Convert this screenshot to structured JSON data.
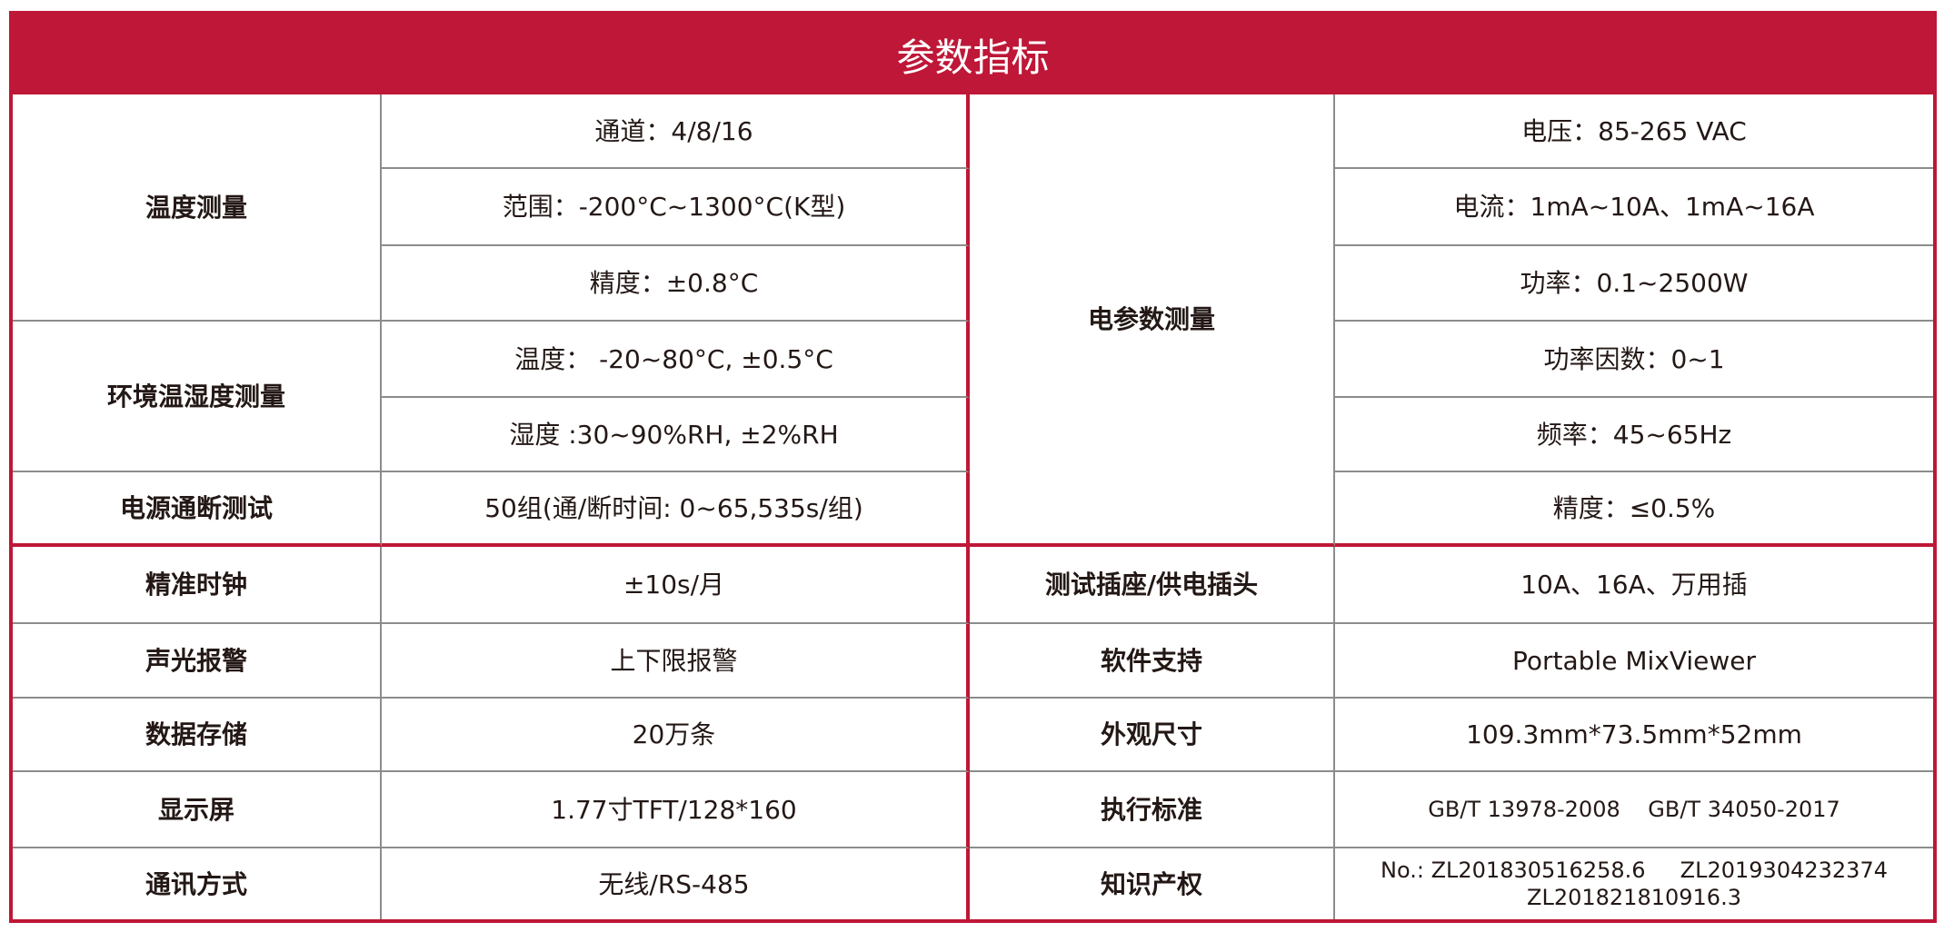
{
  "title": "参数指标",
  "colors": {
    "accent": "#be1737"
  },
  "left_top": [
    {
      "label": "温度测量",
      "values": [
        "通道：4/8/16",
        "范围：-200°C~1300°C(K型)",
        "精度：±0.8°C"
      ]
    },
    {
      "label": "环境温湿度测量",
      "values": [
        "温度： -20~80°C, ±0.5°C",
        "湿度 :30~90%RH, ±2%RH"
      ]
    },
    {
      "label": "电源通断测试",
      "values": [
        "50组(通/断时间: 0~65,535s/组)"
      ]
    }
  ],
  "right_top": {
    "label": "电参数测量",
    "values": [
      "电压：85-265 VAC",
      "电流：1mA~10A、1mA~16A",
      "功率：0.1~2500W",
      "功率因数：0~1",
      "频率：45~65Hz",
      "精度：≤0.5%"
    ]
  },
  "bottom_rows": [
    {
      "l_label": "精准时钟",
      "l_value": "±10s/月",
      "r_label": "测试插座/供电插头",
      "r_value": "10A、16A、万用插"
    },
    {
      "l_label": "声光报警",
      "l_value": "上下限报警",
      "r_label": "软件支持",
      "r_value": "Portable MixViewer"
    },
    {
      "l_label": "数据存储",
      "l_value": "20万条",
      "r_label": "外观尺寸",
      "r_value": "109.3mm*73.5mm*52mm"
    },
    {
      "l_label": "显示屏",
      "l_value": "1.77寸TFT/128*160",
      "r_label": "执行标准",
      "r_value": "GB/T 13978-2008    GB/T 34050-2017"
    },
    {
      "l_label": "通讯方式",
      "l_value": "无线/RS-485",
      "r_label": "知识产权",
      "r_value_line1": "No.: ZL201830516258.6     ZL2019304232374",
      "r_value_line2": "ZL201821810916.3"
    }
  ]
}
